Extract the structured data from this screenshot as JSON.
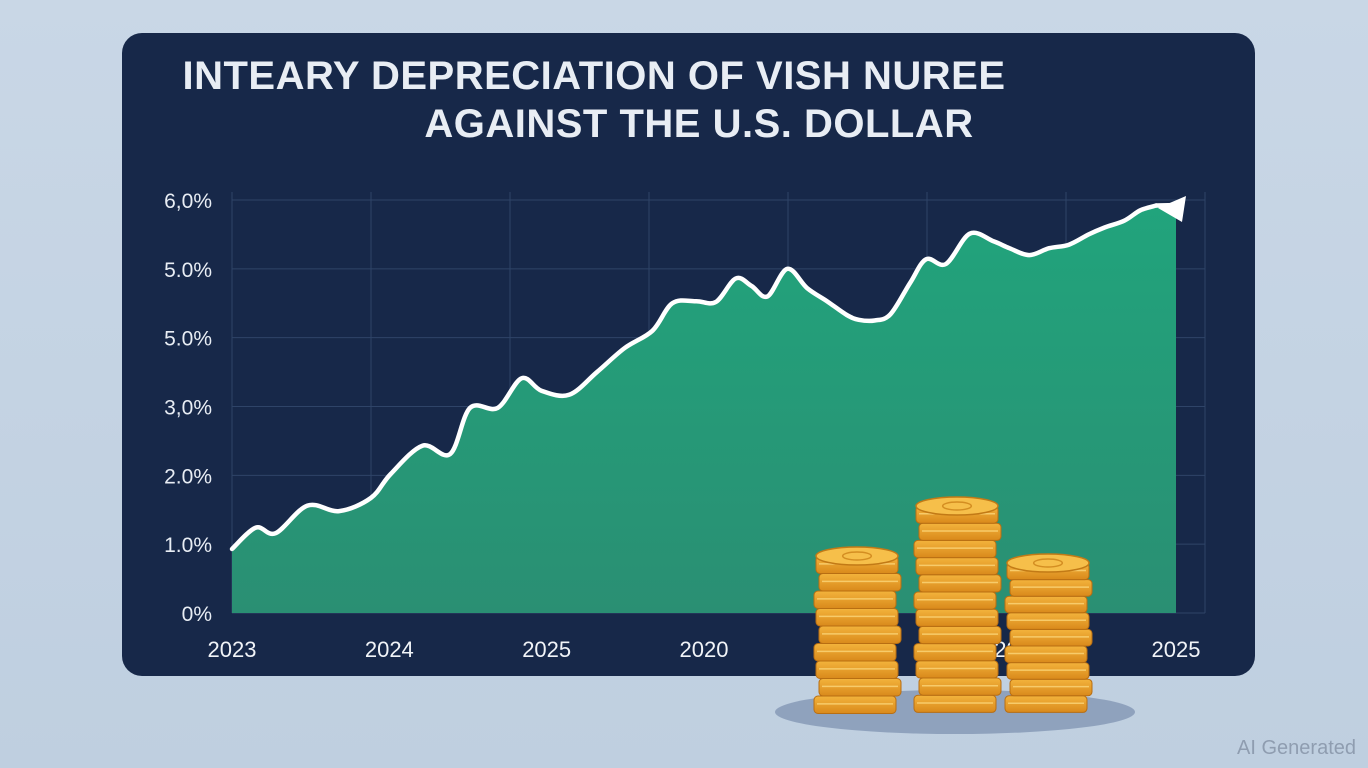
{
  "chart_data": {
    "type": "area",
    "title": "INTEARY DEPRECIATION OF VISH NUREE AGAINST THE U.S. DOLLAR",
    "title_lines": [
      "INTEARY DEPRECIATION OF VISH NUREE",
      "AGAINST THE U.S. DOLLAR"
    ],
    "y_tick_labels": [
      "0%",
      "1.0%",
      "2.0%",
      "3,0%",
      "5.0%",
      "5.0%",
      "6,0%"
    ],
    "x_tick_labels": [
      "2023",
      "2024",
      "2025",
      "2020",
      "2025",
      "2025",
      "2025"
    ],
    "ylim": [
      0,
      6
    ],
    "grid": true,
    "legend": "none",
    "series": [
      {
        "color": "#24a27c",
        "line_color": "#ffffff",
        "x": [
          0,
          0.3,
          0.55,
          0.95,
          1.35,
          1.75,
          2.0,
          2.4,
          2.75,
          3.0,
          3.35,
          3.65,
          3.9,
          4.25,
          4.6,
          4.95,
          5.3,
          5.55,
          5.85,
          6.1,
          6.35,
          6.55,
          6.75,
          7.0,
          7.25,
          7.5,
          7.75,
          7.9,
          8.1,
          8.3,
          8.55,
          8.75,
          9.0,
          9.3,
          9.6,
          9.8,
          10.05,
          10.3,
          10.55,
          10.8,
          11.0,
          11.25,
          11.45,
          11.65,
          11.9
        ],
        "values": [
          0.93,
          1.24,
          1.16,
          1.56,
          1.48,
          1.67,
          2.02,
          2.43,
          2.31,
          2.98,
          2.98,
          3.41,
          3.23,
          3.17,
          3.5,
          3.85,
          4.1,
          4.5,
          4.53,
          4.52,
          4.86,
          4.75,
          4.6,
          5.0,
          4.72,
          4.53,
          4.33,
          4.26,
          4.25,
          4.34,
          4.8,
          5.14,
          5.07,
          5.51,
          5.4,
          5.3,
          5.2,
          5.3,
          5.35,
          5.5,
          5.6,
          5.7,
          5.85,
          5.92,
          5.95
        ]
      }
    ],
    "x_domain": [
      0,
      12
    ]
  },
  "watermark": "AI Generated",
  "icons": [
    "coin-stack-icon"
  ]
}
